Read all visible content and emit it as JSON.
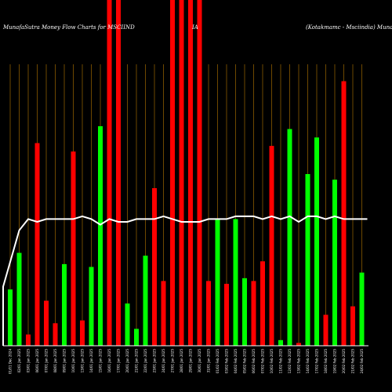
{
  "chart_data": {
    "type": "bar",
    "title_left": "MunafaSutra  Money Flow  Charts for MSCIIND",
    "title_mid": "IA",
    "title_right": "(Kotakmamc -  Msciindia) Munaf",
    "ylim": [
      0,
      100
    ],
    "categories": [
      "01/01 Dec 2024",
      "02/01 Jan 2025",
      "03/01 Jan 2025",
      "06/01 Jan 2025",
      "07/01 Jan 2025",
      "08/01 Jan 2025",
      "09/01 Jan 2025",
      "10/01 Jan 2025",
      "13/01 Jan 2025",
      "14/01 Jan 2025",
      "15/01 Jan 2025",
      "16/01 Jan 2025",
      "17/01 Jan 2025",
      "20/01 Jan 2025",
      "21/01 Jan 2025",
      "22/01 Jan 2025",
      "23/01 Jan 2025",
      "24/01 Jan 2025",
      "27/01 Jan 2025",
      "28/01 Jan 2025",
      "29/01 Jan 2025",
      "30/01 Jan 2025",
      "31/01 Jan 2025",
      "01/02 Feb 2025",
      "03/02 Feb 2025",
      "04/02 Feb 2025",
      "05/02 Feb 2025",
      "06/02 Feb 2025",
      "07/02 Feb 2025",
      "10/02 Feb 2025",
      "11/02 Feb 2025",
      "12/02 Feb 2025",
      "13/02 Feb 2025",
      "14/02 Feb 2025",
      "17/02 Feb 2025",
      "18/02 Feb 2025",
      "19/02 Feb 2025",
      "20/02 Feb 2025",
      "21/02 Feb 2025",
      "24/02 Feb 2025"
    ],
    "bar_values": [
      20,
      33,
      4,
      72,
      16,
      8,
      29,
      69,
      9,
      28,
      78,
      100,
      100,
      15,
      6,
      32,
      56,
      23,
      100,
      100,
      100,
      100,
      23,
      45,
      22,
      45,
      24,
      23,
      30,
      71,
      2,
      77,
      1,
      61,
      74,
      11,
      59,
      94,
      14,
      26
    ],
    "bar_colors": [
      "green",
      "green",
      "red",
      "red",
      "red",
      "red",
      "green",
      "red",
      "red",
      "green",
      "green",
      "red",
      "red",
      "green",
      "green",
      "green",
      "red",
      "red",
      "red",
      "red",
      "red",
      "red",
      "red",
      "green",
      "red",
      "green",
      "green",
      "red",
      "red",
      "red",
      "green",
      "green",
      "red",
      "green",
      "green",
      "red",
      "green",
      "red",
      "red",
      "green"
    ],
    "bar_color_map": {
      "red": "#ff0000",
      "green": "#00ff00"
    },
    "line_values": [
      21,
      41,
      45,
      44,
      45,
      45,
      45,
      45,
      46,
      45,
      43,
      45,
      44,
      44,
      45,
      45,
      45,
      46,
      45,
      44,
      44,
      44,
      45,
      45,
      45,
      46,
      46,
      46,
      45,
      46,
      45,
      46,
      44,
      46,
      46,
      45,
      46,
      45,
      45,
      45
    ],
    "line_color": "#ffffff",
    "grid": true,
    "grid_color": "#8a5a00",
    "background": "#000000"
  }
}
